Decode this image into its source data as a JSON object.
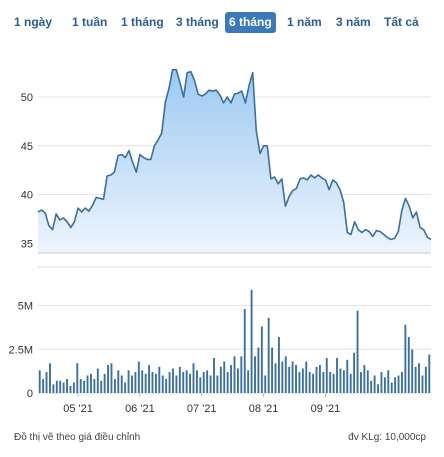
{
  "tabs": [
    {
      "label": "1 ngày",
      "active": false
    },
    {
      "label": "1 tuần",
      "active": false
    },
    {
      "label": "1 tháng",
      "active": false
    },
    {
      "label": "3 tháng",
      "active": false
    },
    {
      "label": "6 tháng",
      "active": true
    },
    {
      "label": "1 năm",
      "active": false
    },
    {
      "label": "3 năm",
      "active": false
    },
    {
      "label": "Tất cả",
      "active": false
    }
  ],
  "footer": {
    "note": "Đồ thị vẽ theo giá điều chỉnh",
    "unit": "đv KLg: 10,000cp"
  },
  "colors": {
    "line": "#3a6f9e",
    "area_top": "#9cc9f2",
    "area_bottom": "#eef5fd",
    "volume": "#3a6f9e",
    "active_tab": "#3c79b7",
    "tab_text": "#2c5d91"
  },
  "chart_data": [
    {
      "type": "area",
      "title": "",
      "xlabel": "",
      "ylabel": "",
      "ylim": [
        34,
        54
      ],
      "yticks": [
        35,
        40,
        45,
        50
      ],
      "x_ticks": [
        "05 '21",
        "06 '21",
        "07 '21",
        "08 '21",
        "09 '21"
      ],
      "x_tick_positions": [
        11,
        28,
        45,
        62,
        79
      ],
      "grid": true,
      "series": [
        {
          "name": "",
          "values": [
            38.2,
            38.4,
            38.1,
            36.8,
            36.4,
            38.0,
            37.4,
            37.6,
            37.2,
            36.6,
            37.2,
            38.6,
            38.2,
            38.6,
            38.3,
            38.9,
            39.7,
            39.6,
            39.5,
            41.9,
            42.0,
            42.3,
            44.0,
            44.1,
            43.8,
            44.5,
            43.3,
            42.3,
            44.1,
            43.8,
            43.6,
            43.6,
            45.0,
            45.6,
            46.3,
            49.5,
            50.9,
            52.8,
            52.8,
            51.5,
            50.0,
            52.5,
            52.6,
            51.7,
            50.3,
            50.1,
            50.3,
            50.7,
            50.6,
            50.7,
            50.2,
            49.4,
            50.0,
            49.4,
            50.3,
            50.4,
            50.6,
            49.4,
            51.2,
            52.5,
            46.5,
            44.2,
            45.0,
            45.0,
            41.6,
            41.8,
            41.1,
            41.6,
            38.8,
            39.8,
            40.4,
            40.6,
            41.6,
            41.7,
            41.5,
            42.0,
            41.7,
            42.0,
            41.7,
            41.5,
            40.5,
            41.5,
            41.2,
            40.5,
            39.2,
            36.1,
            35.9,
            37.2,
            36.4,
            36.1,
            36.4,
            36.2,
            35.7,
            36.3,
            36.2,
            35.9,
            35.6,
            35.4,
            35.5,
            36.2,
            38.4,
            39.6,
            38.8,
            37.6,
            38.2,
            36.6,
            36.4,
            35.6,
            35.4
          ]
        }
      ]
    },
    {
      "type": "bar",
      "title": "",
      "xlabel": "",
      "ylabel": "",
      "ylim": [
        0,
        6.4
      ],
      "yticks": [
        0,
        2.5,
        5
      ],
      "ytick_labels": [
        "0",
        "2.5M",
        "5M"
      ],
      "series": [
        {
          "name": "",
          "values": [
            1.3,
            0.8,
            1.2,
            1.7,
            0.5,
            0.7,
            0.7,
            0.6,
            0.8,
            0.4,
            0.6,
            1.7,
            0.8,
            0.7,
            1.0,
            1.1,
            0.8,
            1.4,
            0.7,
            1.1,
            1.6,
            1.7,
            0.8,
            1.3,
            1.0,
            0.6,
            1.3,
            1.0,
            1.2,
            1.8,
            1.3,
            1.1,
            1.6,
            1.2,
            1.1,
            1.5,
            1.0,
            0.8,
            1.2,
            1.4,
            1.0,
            1.5,
            1.2,
            1.3,
            1.1,
            1.7,
            1.3,
            0.9,
            1.2,
            1.3,
            1.0,
            2.0,
            1.0,
            1.5,
            1.8,
            1.2,
            1.6,
            2.1,
            1.4,
            2.1,
            4.8,
            1.3,
            5.9,
            2.1,
            2.6,
            3.8,
            1.0,
            4.3,
            2.6,
            1.7,
            3.2,
            1.8,
            2.1,
            1.5,
            1.8,
            1.6,
            1.2,
            1.4,
            1.8,
            1.2,
            1.1,
            1.5,
            1.6,
            1.2,
            2.0,
            1.2,
            1.1,
            2.0,
            1.4,
            1.3,
            1.9,
            1.1,
            2.3,
            4.7,
            1.2,
            1.6,
            1.3,
            0.7,
            1.0,
            0.5,
            1.2,
            0.9,
            1.3,
            0.6,
            0.9,
            1.0,
            1.2,
            3.9,
            3.2,
            2.5,
            1.5,
            1.7,
            1.0,
            1.5,
            2.2
          ]
        }
      ]
    }
  ]
}
